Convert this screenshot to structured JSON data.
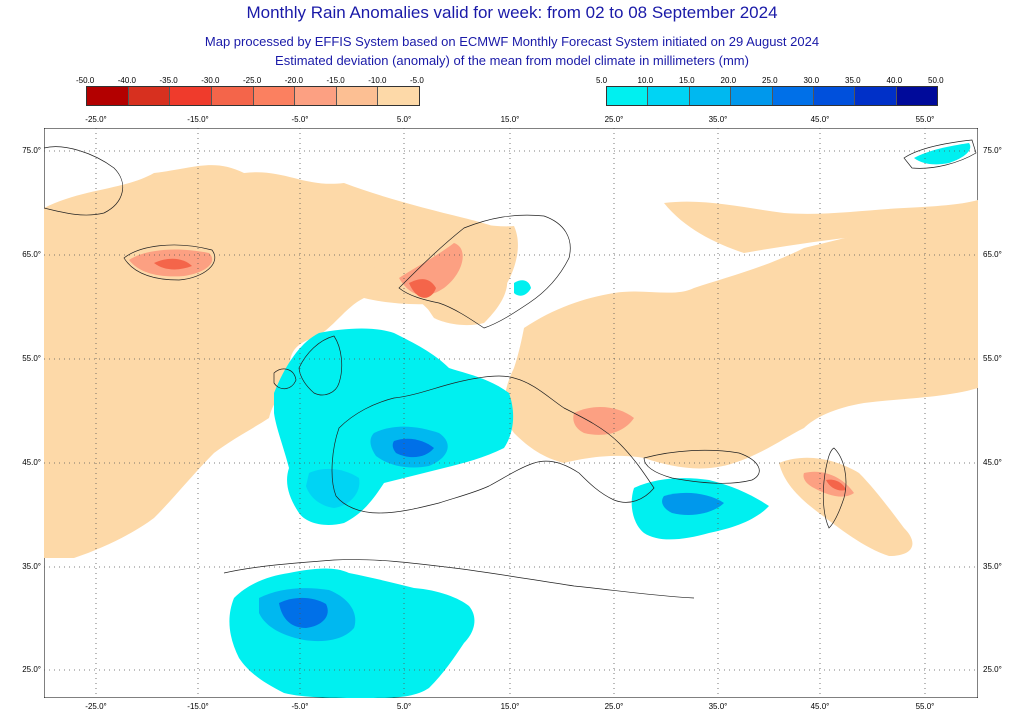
{
  "header": {
    "title": "Monthly Rain Anomalies valid for week: from 02 to 08 September 2024",
    "subtitle_1": "Map processed by EFFIS System based on ECMWF Monthly Forecast System initiated on 29 August 2024",
    "subtitle_2": "Estimated deviation (anomaly) of the mean from model climate in millimeters (mm)"
  },
  "legend_negative": {
    "ticks": [
      "-50.0",
      "-40.0",
      "-35.0",
      "-30.0",
      "-25.0",
      "-20.0",
      "-15.0",
      "-10.0",
      "-5.0"
    ],
    "colors": [
      "#b30000",
      "#d7301f",
      "#ef3b2c",
      "#f4654a",
      "#fb8060",
      "#fca082",
      "#fcbf93",
      "#fdd9a8"
    ]
  },
  "legend_positive": {
    "ticks": [
      "5.0",
      "10.0",
      "15.0",
      "20.0",
      "25.0",
      "30.0",
      "35.0",
      "40.0",
      "50.0"
    ],
    "colors": [
      "#00f0f0",
      "#00d4f4",
      "#00b8f0",
      "#0098ec",
      "#0070e8",
      "#0050dc",
      "#0030c8",
      "#000a9a"
    ]
  },
  "map": {
    "top_longitude_labels": [
      "-25.0°",
      "-15.0°",
      "-5.0°",
      "5.0°",
      "15.0°",
      "25.0°",
      "35.0°",
      "45.0°",
      "55.0°"
    ],
    "bottom_longitude_labels": [
      "-25.0°",
      "-15.0°",
      "-5.0°",
      "5.0°",
      "15.0°",
      "25.0°",
      "35.0°",
      "45.0°",
      "55.0°"
    ],
    "left_latitude_labels": [
      "75.0°",
      "65.0°",
      "55.0°",
      "45.0°",
      "35.0°",
      "25.0°"
    ],
    "right_latitude_labels": [
      "75.0°",
      "65.0°",
      "55.0°",
      "45.0°",
      "35.0°",
      "25.0°"
    ]
  }
}
